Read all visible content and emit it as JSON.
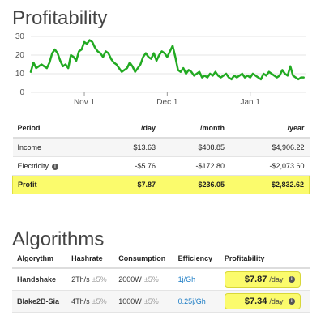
{
  "profitability": {
    "title": "Profitability",
    "chart_data": {
      "type": "line",
      "title": "",
      "xlabel": "",
      "ylabel": "",
      "ylim": [
        0,
        30
      ],
      "yticks": [
        "30",
        "20",
        "10",
        "0"
      ],
      "xtick_labels": [
        "Nov 1",
        "Dec 1",
        "Jan 1"
      ],
      "xrange_days": [
        0,
        103
      ],
      "xtick_days": [
        20,
        51,
        82
      ],
      "grid": true,
      "line_color": "#22aa22",
      "series": [
        {
          "x": [
            0,
            1,
            2,
            3,
            4,
            5,
            6,
            7,
            8,
            9,
            10,
            11,
            12,
            13,
            14,
            15,
            16,
            17,
            18,
            19,
            20,
            21,
            22,
            23,
            24,
            25,
            26,
            27,
            28,
            29,
            30,
            31,
            32,
            33,
            34,
            35,
            36,
            37,
            38,
            39,
            40,
            41,
            42,
            43,
            44,
            45,
            46,
            47,
            48,
            49,
            50,
            51,
            52,
            53,
            54,
            55,
            56,
            57,
            58,
            59,
            60,
            61,
            62,
            63,
            64,
            65,
            66,
            67,
            68,
            69,
            70,
            71,
            72,
            73,
            74,
            75,
            76,
            77,
            78,
            79,
            80,
            81,
            82,
            83,
            84,
            85,
            86,
            87,
            88,
            89,
            90,
            91,
            92,
            93,
            94,
            95,
            96,
            97,
            98,
            99,
            100,
            101,
            102
          ],
          "y": [
            11,
            16,
            13,
            14,
            15,
            14,
            13,
            16,
            21,
            23,
            21,
            17,
            14,
            15,
            13,
            20,
            19,
            17,
            22,
            23,
            27,
            26,
            28,
            27,
            24,
            22,
            21,
            19,
            22,
            21,
            18,
            16,
            15,
            13,
            11,
            12,
            13,
            16,
            14,
            11,
            13,
            15,
            19,
            21,
            19,
            18,
            21,
            17,
            20,
            22,
            21,
            19,
            22,
            25,
            19,
            12,
            11,
            13,
            10,
            12,
            11,
            9,
            10,
            11,
            8,
            9,
            8,
            10,
            9,
            11,
            9,
            8,
            9,
            10,
            8,
            7,
            9,
            8,
            9,
            10,
            8,
            9,
            8,
            10,
            9,
            8,
            7,
            10,
            9,
            11,
            10,
            9,
            8,
            9,
            12,
            10,
            9,
            14,
            9,
            8,
            7,
            8,
            8
          ]
        }
      ]
    },
    "table": {
      "headers": [
        "Period",
        "/day",
        "/month",
        "/year"
      ],
      "rows": [
        {
          "label": "Income",
          "values": [
            "$13.63",
            "$408.85",
            "$4,906.22"
          ]
        },
        {
          "label": "Electricity",
          "values": [
            "-$5.76",
            "-$172.80",
            "-$2,073.60"
          ]
        },
        {
          "label": "Profit",
          "values": [
            "$7.87",
            "$236.05",
            "$2,832.62"
          ]
        }
      ],
      "info_icon": "info-icon",
      "colors": {
        "positive": "#3a9a22",
        "negative": "#c0392b",
        "highlight": "#fbfb6c"
      }
    }
  },
  "algorithms": {
    "title": "Algorithms",
    "headers": [
      "Algorythm",
      "Hashrate",
      "Consumption",
      "Efficiency",
      "Profitability"
    ],
    "rows": [
      {
        "name": "Handshake",
        "hashrate": "2Th/s",
        "hashrate_tol": "±5%",
        "consumption": "2000W",
        "consumption_tol": "±5%",
        "efficiency": "1j/Gh",
        "profit": "$7.87",
        "unit": "/day"
      },
      {
        "name": "Blake2B-Sia",
        "hashrate": "4Th/s",
        "hashrate_tol": "±5%",
        "consumption": "1000W",
        "consumption_tol": "±5%",
        "efficiency": "0.25j/Gh",
        "profit": "$7.34",
        "unit": "/day"
      }
    ]
  }
}
